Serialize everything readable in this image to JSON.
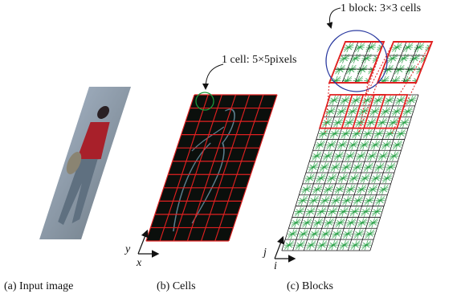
{
  "figure": {
    "annotations": {
      "cell": "1 cell: 5×5pixels",
      "block": "1 block: 3×3 cells"
    },
    "axes_b": {
      "y": "y",
      "x": "x"
    },
    "axes_c": {
      "y": "j",
      "x": "i"
    },
    "captions": [
      "(a) Input image",
      "(b) Cells",
      "(c) Blocks"
    ]
  }
}
